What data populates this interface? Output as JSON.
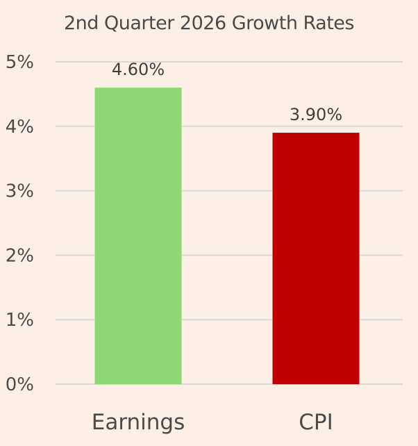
{
  "chart_data": {
    "type": "bar",
    "title": "2nd Quarter 2026 Growth  Rates",
    "categories": [
      "Earnings",
      "CPI"
    ],
    "values": [
      4.6,
      3.9
    ],
    "data_labels": [
      "4.60%",
      "3.90%"
    ],
    "bar_colors": [
      "#8ed874",
      "#c00000"
    ],
    "ylim": [
      0,
      5
    ],
    "yticks": [
      0,
      1,
      2,
      3,
      4,
      5
    ],
    "ytick_labels": [
      "0%",
      "1%",
      "2%",
      "3%",
      "4%",
      "5%"
    ],
    "xlabel": "",
    "ylabel": "",
    "grid": true,
    "grid_color": "#d9d9d9",
    "background": "#fcf0e6"
  }
}
